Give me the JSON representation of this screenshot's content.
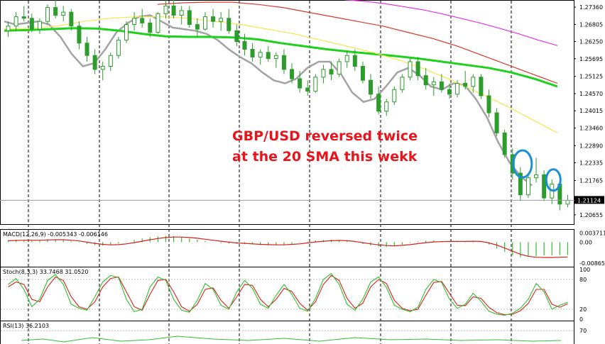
{
  "chart_data": {
    "type": "line",
    "title": "",
    "xlabel": "",
    "ylabel": "",
    "main_panel": {
      "price_ticks": [
        "1.27360",
        "1.26805",
        "1.26250",
        "1.25695",
        "1.25125",
        "1.24570",
        "1.24015",
        "1.23460",
        "1.22890",
        "1.22335",
        "1.21765",
        "1.21210",
        "1.20655"
      ],
      "ylim": [
        1.204,
        1.275
      ],
      "current_price": "1.21124",
      "current_price_value": 1.21124,
      "candles": [
        [
          1.266,
          1.269,
          1.264,
          1.2675
        ],
        [
          1.2675,
          1.272,
          1.266,
          1.2705
        ],
        [
          1.2705,
          1.274,
          1.269,
          1.27
        ],
        [
          1.27,
          1.2715,
          1.2655,
          1.2665
        ],
        [
          1.2665,
          1.27,
          1.265,
          1.269
        ],
        [
          1.269,
          1.2745,
          1.268,
          1.2735
        ],
        [
          1.2735,
          1.276,
          1.27,
          1.271
        ],
        [
          1.271,
          1.274,
          1.269,
          1.272
        ],
        [
          1.272,
          1.273,
          1.266,
          1.2675
        ],
        [
          1.2675,
          1.269,
          1.26,
          1.262
        ],
        [
          1.262,
          1.264,
          1.256,
          1.258
        ],
        [
          1.258,
          1.26,
          1.252,
          1.2535
        ],
        [
          1.2535,
          1.256,
          1.25,
          1.2545
        ],
        [
          1.2545,
          1.259,
          1.253,
          1.258
        ],
        [
          1.258,
          1.264,
          1.257,
          1.263
        ],
        [
          1.263,
          1.269,
          1.262,
          1.268
        ],
        [
          1.268,
          1.272,
          1.266,
          1.27
        ],
        [
          1.27,
          1.273,
          1.267,
          1.2685
        ],
        [
          1.2685,
          1.27,
          1.264,
          1.2655
        ],
        [
          1.2655,
          1.272,
          1.265,
          1.2715
        ],
        [
          1.2715,
          1.276,
          1.27,
          1.274
        ],
        [
          1.274,
          1.2765,
          1.27,
          1.271
        ],
        [
          1.271,
          1.274,
          1.268,
          1.2725
        ],
        [
          1.2725,
          1.274,
          1.267,
          1.268
        ],
        [
          1.268,
          1.27,
          1.264,
          1.2665
        ],
        [
          1.2665,
          1.272,
          1.266,
          1.2705
        ],
        [
          1.2705,
          1.273,
          1.267,
          1.269
        ],
        [
          1.269,
          1.272,
          1.266,
          1.27
        ],
        [
          1.27,
          1.273,
          1.265,
          1.266
        ],
        [
          1.266,
          1.268,
          1.261,
          1.2625
        ],
        [
          1.2625,
          1.265,
          1.258,
          1.26
        ],
        [
          1.26,
          1.262,
          1.256,
          1.2575
        ],
        [
          1.2575,
          1.26,
          1.255,
          1.259
        ],
        [
          1.259,
          1.261,
          1.256,
          1.257
        ],
        [
          1.257,
          1.259,
          1.254,
          1.258
        ],
        [
          1.258,
          1.26,
          1.252,
          1.2535
        ],
        [
          1.2535,
          1.2555,
          1.249,
          1.2505
        ],
        [
          1.2505,
          1.253,
          1.246,
          1.2475
        ],
        [
          1.2475,
          1.25,
          1.245,
          1.2465
        ],
        [
          1.2465,
          1.252,
          1.246,
          1.251
        ],
        [
          1.251,
          1.255,
          1.249,
          1.2535
        ],
        [
          1.2535,
          1.256,
          1.25,
          1.252
        ],
        [
          1.252,
          1.257,
          1.251,
          1.256
        ],
        [
          1.256,
          1.2595,
          1.254,
          1.258
        ],
        [
          1.258,
          1.26,
          1.253,
          1.2545
        ],
        [
          1.2545,
          1.256,
          1.249,
          1.25
        ],
        [
          1.25,
          1.252,
          1.244,
          1.2455
        ],
        [
          1.2455,
          1.248,
          1.239,
          1.24
        ],
        [
          1.24,
          1.244,
          1.2385,
          1.243
        ],
        [
          1.243,
          1.248,
          1.242,
          1.247
        ],
        [
          1.247,
          1.252,
          1.246,
          1.251
        ],
        [
          1.251,
          1.257,
          1.25,
          1.256
        ],
        [
          1.256,
          1.2575,
          1.25,
          1.2515
        ],
        [
          1.2515,
          1.254,
          1.247,
          1.2485
        ],
        [
          1.2485,
          1.251,
          1.245,
          1.2495
        ],
        [
          1.2495,
          1.252,
          1.246,
          1.247
        ],
        [
          1.247,
          1.249,
          1.244,
          1.2455
        ],
        [
          1.2455,
          1.25,
          1.2445,
          1.249
        ],
        [
          1.249,
          1.253,
          1.247,
          1.248
        ],
        [
          1.248,
          1.252,
          1.246,
          1.251
        ],
        [
          1.251,
          1.252,
          1.244,
          1.245
        ],
        [
          1.245,
          1.247,
          1.238,
          1.2395
        ],
        [
          1.2395,
          1.241,
          1.232,
          1.233
        ],
        [
          1.233,
          1.234,
          1.225,
          1.226
        ],
        [
          1.226,
          1.228,
          1.218,
          1.22
        ],
        [
          1.22,
          1.222,
          1.211,
          1.213
        ],
        [
          1.213,
          1.22,
          1.212,
          1.2185
        ],
        [
          1.2185,
          1.225,
          1.217,
          1.2195
        ],
        [
          1.2195,
          1.221,
          1.211,
          1.212
        ],
        [
          1.212,
          1.218,
          1.21,
          1.2165
        ],
        [
          1.2165,
          1.2175,
          1.208,
          1.21
        ],
        [
          1.21,
          1.213,
          1.209,
          1.2112
        ]
      ],
      "moving_averages": [
        {
          "color": "#a3a3a3",
          "values": [
            1.269,
            1.268,
            1.2685,
            1.269,
            1.268,
            1.264,
            1.2585,
            1.2545,
            1.2555,
            1.26,
            1.2655,
            1.2685,
            1.2705,
            1.271,
            1.269,
            1.267,
            1.2665,
            1.266,
            1.265,
            1.263,
            1.26,
            1.2575,
            1.2555,
            1.2525,
            1.25,
            1.249,
            1.2505,
            1.254,
            1.256,
            1.256,
            1.252,
            1.246,
            1.243,
            1.244,
            1.248,
            1.2525,
            1.254,
            1.2515,
            1.248,
            1.247,
            1.249,
            1.2485,
            1.244,
            1.238,
            1.23,
            1.2235,
            1.219,
            1.216
          ]
        },
        {
          "color": "#1dd11d",
          "values": [
            1.266,
            1.2662,
            1.2665,
            1.2668,
            1.2667,
            1.266,
            1.265,
            1.2642,
            1.264,
            1.264,
            1.2638,
            1.2632,
            1.262,
            1.261,
            1.26,
            1.2592,
            1.2585,
            1.2578,
            1.257,
            1.256,
            1.255,
            1.254,
            1.2525,
            1.2505,
            1.248
          ]
        },
        {
          "color": "#f5e64b",
          "values": [
            1.2665,
            1.2668,
            1.2675,
            1.269,
            1.27,
            1.2705,
            1.2705,
            1.27,
            1.269,
            1.268,
            1.2665,
            1.265,
            1.263,
            1.261,
            1.259,
            1.2565,
            1.2535,
            1.25,
            1.246,
            1.242,
            1.2375,
            1.233
          ]
        },
        {
          "color": "#d83a2b",
          "values": [
            1.2745,
            1.275,
            1.2752,
            1.2752,
            1.2745,
            1.2735,
            1.272,
            1.2705,
            1.269,
            1.2675,
            1.2655,
            1.2635,
            1.261,
            1.258,
            1.255,
            1.252,
            1.249
          ]
        },
        {
          "color": "#e233e2",
          "values": [
            1.276,
            1.2755,
            1.2748,
            1.2738,
            1.2728,
            1.2715,
            1.27,
            1.2685,
            1.2668,
            1.265,
            1.263,
            1.2612
          ]
        }
      ],
      "annotation": [
        "GBP/USD reversed twice",
        "at the 20 SMA this wekk"
      ],
      "annotation_color": "#e8141b",
      "circle_color": "#1a8fd8",
      "highlight_circles": [
        [
          65,
          1.223
        ],
        [
          69,
          1.2178
        ]
      ]
    },
    "macd_panel": {
      "label": "MACD(12,26,9) -0.005343 -0.006146",
      "ticks": [
        "0.003711",
        "0.00",
        "-0.008653"
      ],
      "ylim": [
        -0.0095,
        0.0045
      ],
      "histogram": [
        0.0008,
        0.001,
        0.0009,
        0.0006,
        0.0008,
        0.0012,
        0.0011,
        0.0008,
        0.0004,
        -0.0002,
        -0.0008,
        -0.0012,
        -0.0014,
        -0.0011,
        -0.0006,
        0.0002,
        0.0009,
        0.0015,
        0.002,
        0.0024,
        0.0026,
        0.0025,
        0.002,
        0.0015,
        0.001,
        0.0005,
        0.0,
        -0.0004,
        -0.0006,
        -0.0007,
        -0.0008,
        -0.001,
        -0.0012,
        -0.0013,
        -0.0012,
        -0.001,
        -0.0006,
        -0.0002,
        0.0003,
        0.0007,
        0.0009,
        0.001,
        0.0008,
        0.0004,
        -0.0002,
        -0.0008,
        -0.0014,
        -0.0018,
        -0.002,
        -0.0016,
        -0.001,
        -0.0003,
        0.0003,
        0.0006,
        0.0007,
        0.0005,
        0.0003,
        0.0002,
        0.0004,
        0.0005,
        0.0002,
        -0.001,
        -0.0025,
        -0.004,
        -0.0055,
        -0.0062,
        -0.006,
        -0.0058,
        -0.0055,
        -0.0054,
        -0.0053,
        -0.0053
      ],
      "signal": [
        0.0006,
        0.0007,
        0.0008,
        0.0008,
        0.0008,
        0.0009,
        0.001,
        0.001,
        0.0008,
        0.0005,
        0.0,
        -0.0005,
        -0.0009,
        -0.0011,
        -0.001,
        -0.0007,
        -0.0002,
        0.0004,
        0.001,
        0.0015,
        0.0019,
        0.0021,
        0.0021,
        0.0019,
        0.0016,
        0.0012,
        0.0008,
        0.0004,
        0.0,
        -0.0003,
        -0.0005,
        -0.0007,
        -0.0009,
        -0.001,
        -0.0011,
        -0.0011,
        -0.0009,
        -0.0007,
        -0.0003,
        0.0001,
        0.0004,
        0.0006,
        0.0007,
        0.0006,
        0.0003,
        -0.0002,
        -0.0007,
        -0.0011,
        -0.0014,
        -0.0015,
        -0.0013,
        -0.001,
        -0.0006,
        -0.0002,
        0.0001,
        0.0002,
        0.0003,
        0.0003,
        0.0003,
        0.0004,
        0.0003,
        -0.0003,
        -0.0012,
        -0.0024,
        -0.0037,
        -0.005,
        -0.0058,
        -0.0062,
        -0.0063,
        -0.0063,
        -0.0062,
        -0.0061
      ],
      "histogram_color": "#2ec02e",
      "signal_color": "#d81e1e"
    },
    "stoch_panel": {
      "label": "Stoch(8,3,3) 33.7468 31.0520",
      "ticks": [
        "100",
        "80",
        "20",
        "0"
      ],
      "ylim": [
        0,
        100
      ],
      "main": [
        70,
        82,
        60,
        25,
        40,
        78,
        90,
        70,
        30,
        22,
        18,
        45,
        75,
        88,
        84,
        40,
        15,
        20,
        65,
        85,
        78,
        40,
        18,
        14,
        38,
        72,
        60,
        28,
        20,
        55,
        78,
        62,
        30,
        22,
        48,
        70,
        50,
        22,
        16,
        42,
        80,
        92,
        70,
        30,
        18,
        40,
        75,
        85,
        64,
        28,
        20,
        15,
        24,
        60,
        80,
        74,
        40,
        22,
        30,
        52,
        36,
        16,
        10,
        8,
        12,
        22,
        40,
        72,
        55,
        20,
        28,
        34
      ],
      "signal": [
        65,
        75,
        70,
        40,
        35,
        65,
        85,
        78,
        45,
        25,
        20,
        35,
        65,
        82,
        85,
        55,
        25,
        18,
        50,
        78,
        80,
        55,
        25,
        16,
        30,
        60,
        63,
        38,
        22,
        45,
        70,
        68,
        40,
        25,
        40,
        62,
        56,
        32,
        18,
        35,
        70,
        88,
        78,
        42,
        22,
        32,
        65,
        80,
        72,
        38,
        22,
        17,
        20,
        48,
        74,
        76,
        52,
        28,
        27,
        45,
        42,
        24,
        13,
        9,
        10,
        17,
        32,
        60,
        60,
        30,
        24,
        31
      ],
      "main_color": "#2ec02e",
      "signal_color": "#d81e1e"
    },
    "rsi_panel": {
      "label": "RSI(13) 36.2103",
      "ticks": [
        "70"
      ],
      "ylim": [
        0,
        100
      ],
      "color": "#2ec02e"
    },
    "grid": true,
    "gridline_x": [
      40,
      140,
      238,
      337,
      436,
      536,
      635,
      720
    ]
  }
}
